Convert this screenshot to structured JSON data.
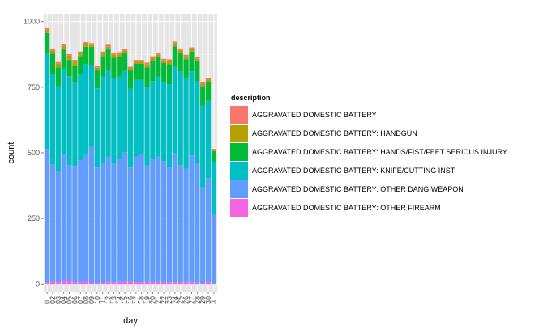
{
  "chart_data": {
    "type": "bar",
    "stacked": true,
    "xlabel": "day",
    "ylabel": "count",
    "ylim": [
      0,
      1000
    ],
    "y_ticks": [
      0,
      250,
      500,
      750,
      1000
    ],
    "grid": true,
    "legend_placement": "right",
    "legend_title": "description",
    "categories": [
      "01",
      "02",
      "03",
      "04",
      "05",
      "06",
      "07",
      "08",
      "09",
      "10",
      "11",
      "12",
      "13",
      "14",
      "15",
      "16",
      "17",
      "18",
      "19",
      "20",
      "21",
      "22",
      "23",
      "24",
      "25",
      "26",
      "27",
      "28",
      "29",
      "30",
      "31"
    ],
    "series": [
      {
        "name": "AGGRAVATED DOMESTIC BATTERY",
        "color": "#F8766D",
        "values": [
          6,
          6,
          6,
          6,
          6,
          6,
          6,
          6,
          6,
          6,
          6,
          6,
          6,
          6,
          6,
          6,
          6,
          6,
          6,
          6,
          6,
          6,
          6,
          6,
          6,
          6,
          6,
          6,
          6,
          6,
          3
        ]
      },
      {
        "name": "AGGRAVATED DOMESTIC BATTERY: HANDGUN",
        "color": "#B79F00",
        "values": [
          12,
          12,
          14,
          14,
          16,
          16,
          12,
          12,
          8,
          8,
          12,
          12,
          12,
          12,
          8,
          8,
          8,
          8,
          12,
          12,
          10,
          10,
          12,
          12,
          12,
          12,
          10,
          10,
          12,
          12,
          6
        ]
      },
      {
        "name": "AGGRAVATED DOMESTIC BATTERY: HANDS/FIST/FEET SERIOUS INJURY",
        "color": "#00BA38",
        "values": [
          78,
          78,
          72,
          72,
          62,
          62,
          66,
          66,
          70,
          70,
          78,
          78,
          76,
          76,
          70,
          70,
          62,
          62,
          76,
          76,
          74,
          74,
          76,
          76,
          70,
          70,
          76,
          76,
          70,
          70,
          40
        ]
      },
      {
        "name": "AGGRAVATED DOMESTIC BATTERY: KNIFE/CUTTING INST",
        "color": "#00BFC4",
        "values": [
          364,
          344,
          322,
          326,
          338,
          320,
          330,
          346,
          312,
          302,
          332,
          330,
          328,
          312,
          310,
          300,
          292,
          284,
          298,
          298,
          304,
          300,
          316,
          330,
          356,
          346,
          320,
          314,
          312,
          294,
          200
        ]
      },
      {
        "name": "AGGRAVATED DOMESTIC BATTERY: OTHER DANG WEAPON",
        "color": "#619CFF",
        "values": [
          510,
          448,
          426,
          486,
          444,
          444,
          466,
          480,
          518,
          440,
          456,
          478,
          452,
          470,
          494,
          436,
          480,
          488,
          444,
          470,
          478,
          462,
          440,
          494,
          448,
          432,
          484,
          452,
          366,
          396,
          264
        ]
      },
      {
        "name": "AGGRAVATED DOMESTIC BATTERY: OTHER FIREARM",
        "color": "#F564E3",
        "values": [
          5,
          8,
          6,
          10,
          10,
          6,
          6,
          12,
          4,
          4,
          2,
          8,
          6,
          8,
          8,
          8,
          6,
          6,
          8,
          6,
          8,
          6,
          6,
          6,
          6,
          8,
          6,
          6,
          2,
          8,
          2
        ]
      }
    ]
  }
}
